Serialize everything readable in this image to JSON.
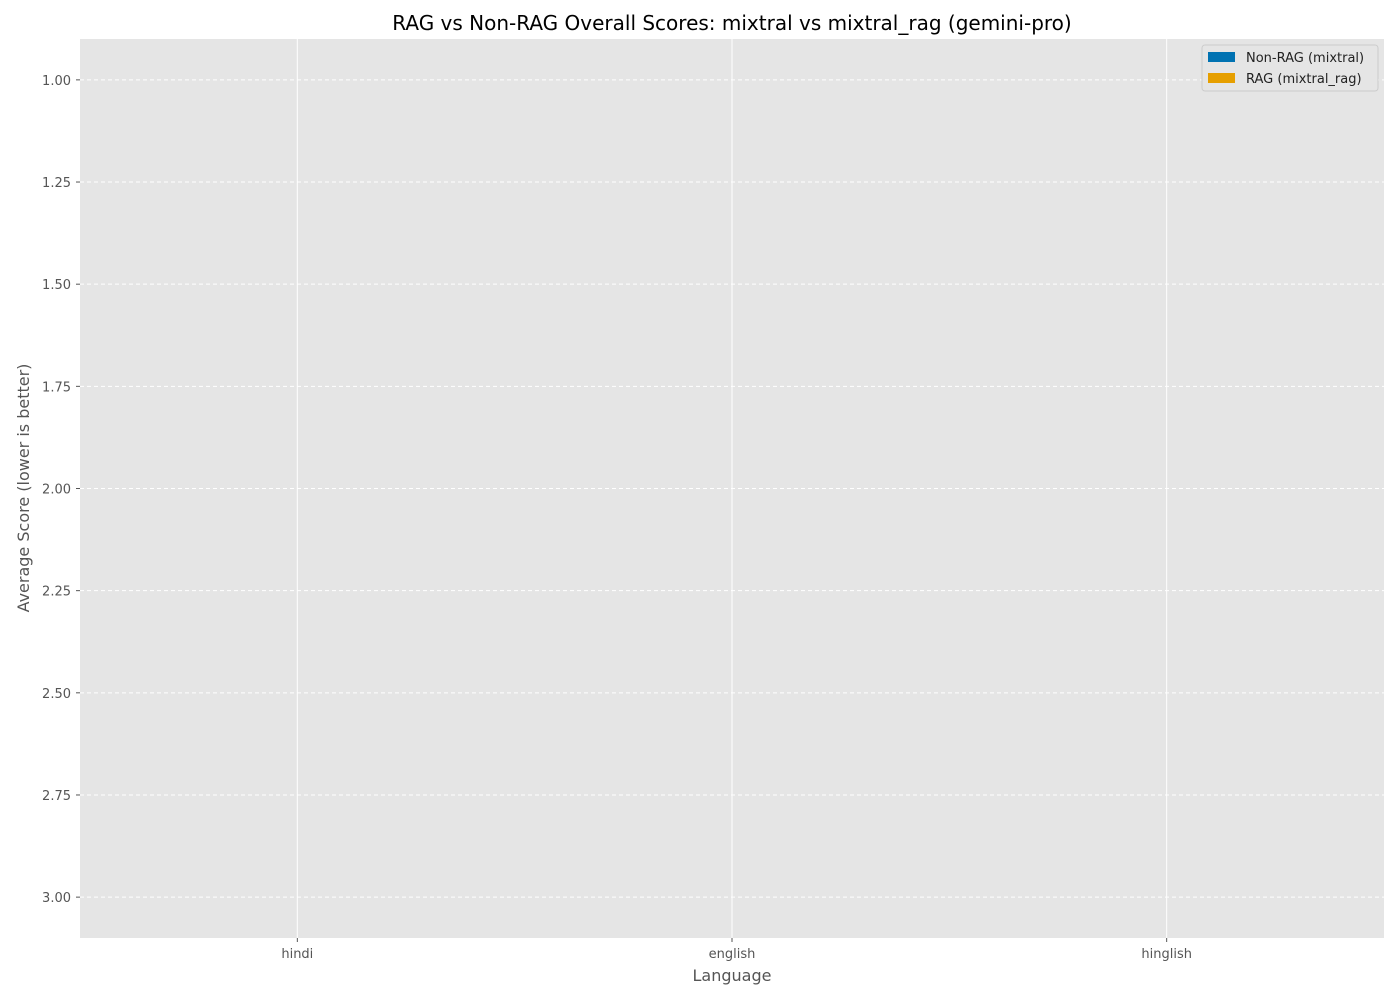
{
  "chart_data": {
    "type": "bar",
    "title": "RAG vs Non-RAG Overall Scores: mixtral vs mixtral_rag (gemini-pro)",
    "xlabel": "Language",
    "ylabel": "Average Score (lower is better)",
    "categories": [
      "hindi",
      "english",
      "hinglish"
    ],
    "y_ticks": [
      "1.00",
      "1.25",
      "1.50",
      "1.75",
      "2.00",
      "2.25",
      "2.50",
      "2.75",
      "3.00"
    ],
    "ylim": [
      0.9,
      3.1
    ],
    "y_inverted": true,
    "grid": true,
    "legend_position": "top-right",
    "series": [
      {
        "name": "Non-RAG (mixtral)",
        "color": "#0072B2",
        "values": [
          null,
          null,
          null
        ]
      },
      {
        "name": "RAG (mixtral_rag)",
        "color": "#E69F00",
        "values": [
          null,
          null,
          null
        ]
      }
    ]
  },
  "colors": {
    "plot_background": "#E5E5E5",
    "grid": "#FFFFFF"
  }
}
